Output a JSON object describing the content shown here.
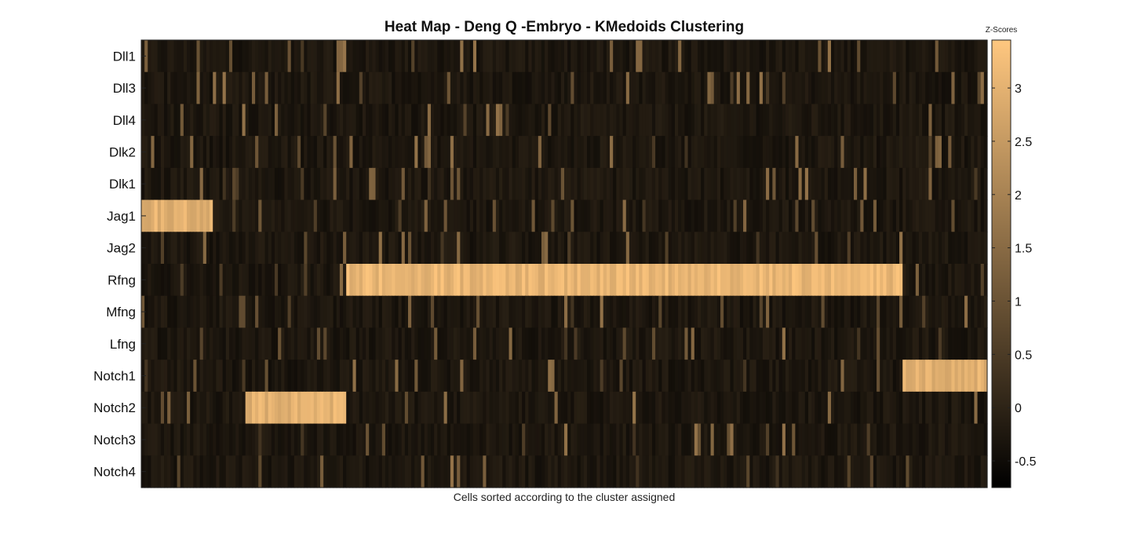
{
  "chart_data": {
    "type": "heatmap",
    "title": "Heat Map - Deng Q -Embryo - KMedoids Clustering",
    "xlabel": "Cells sorted according to the cluster assigned",
    "colorbar_label": "Z-Scores",
    "colormap": "copper",
    "colormap_endpoints": [
      "#000000",
      "#ffc77f"
    ],
    "clim": [
      -0.75,
      3.45
    ],
    "colorbar_ticks": [
      "-0.5",
      "0",
      "0.5",
      "1",
      "1.5",
      "2",
      "2.5",
      "3"
    ],
    "rows": [
      "Dll1",
      "Dll3",
      "Dll4",
      "Dlk2",
      "Dlk1",
      "Jag1",
      "Jag2",
      "Rfng",
      "Mfng",
      "Lfng",
      "Notch1",
      "Notch2",
      "Notch3",
      "Notch4"
    ],
    "n_cells": 260,
    "high_expression_blocks_cell_ranges": [
      {
        "gene": "Jag1",
        "from_cell": 0,
        "to_cell": 22,
        "z": 3.3
      },
      {
        "gene": "Rfng",
        "from_cell": 63,
        "to_cell": 234,
        "z": 3.4
      },
      {
        "gene": "Notch2",
        "from_cell": 32,
        "to_cell": 63,
        "z": 3.3
      },
      {
        "gene": "Notch1",
        "from_cell": 234,
        "to_cell": 260,
        "z": 3.3
      },
      {
        "gene": "Dll1",
        "from_cell": 60,
        "to_cell": 63,
        "z": 1.8
      }
    ]
  }
}
